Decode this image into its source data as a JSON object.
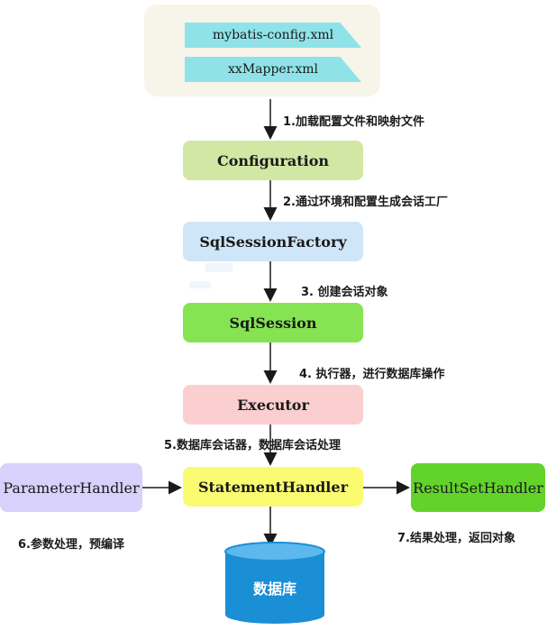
{
  "files": {
    "config_xml": "mybatis-config.xml",
    "mapper_xml": "xxMapper.xml"
  },
  "nodes": {
    "configuration": "Configuration",
    "sql_session_factory": "SqlSessionFactory",
    "sql_session": "SqlSession",
    "executor": "Executor",
    "statement_handler": "StatementHandler",
    "parameter_handler": "ParameterHandler",
    "result_set_handler": "ResultSetHandler",
    "database": "数据库"
  },
  "steps": {
    "step1": "1.加载配置文件和映射文件",
    "step2": "2.通过环境和配置生成会话工厂",
    "step3": "3. 创建会话对象",
    "step4": "4. 执行器，进行数据库操作",
    "step5": "5.数据库会话器，数据库会话处理",
    "step6": "6.参数处理，预编译",
    "step7": "7.结果处理，返回对象"
  },
  "colors": {
    "config_panel": "#f7f4ea",
    "file": "#8fe3e8",
    "configuration": "#d2e7a4",
    "sql_session_factory": "#cfe6f8",
    "sql_session": "#86e352",
    "executor": "#fbcfcf",
    "statement_handler": "#fbfb72",
    "parameter_handler": "#d8d1fb",
    "result_set_handler": "#62d32b",
    "database": "#1a8fd6"
  }
}
